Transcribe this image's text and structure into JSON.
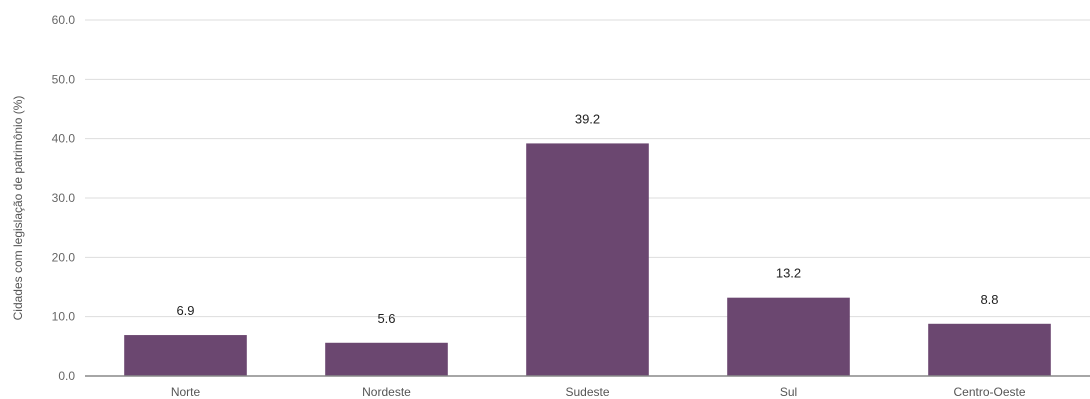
{
  "chart_data": {
    "type": "bar",
    "title": "",
    "xlabel": "",
    "ylabel": "Cidades com legislação de patrimônio (%)",
    "categories": [
      "Norte",
      "Nordeste",
      "Sudeste",
      "Sul",
      "Centro-Oeste"
    ],
    "values": [
      6.9,
      5.6,
      39.2,
      13.2,
      8.8
    ],
    "value_labels": [
      "6.9",
      "5.6",
      "39.2",
      "13.2",
      "8.8"
    ],
    "ylim": [
      0,
      60
    ],
    "yticks": [
      "0.0",
      "10.0",
      "20.0",
      "30.0",
      "40.0",
      "50.0",
      "60.0"
    ],
    "grid": true,
    "bar_color": "#6b4770",
    "legend": "none"
  }
}
